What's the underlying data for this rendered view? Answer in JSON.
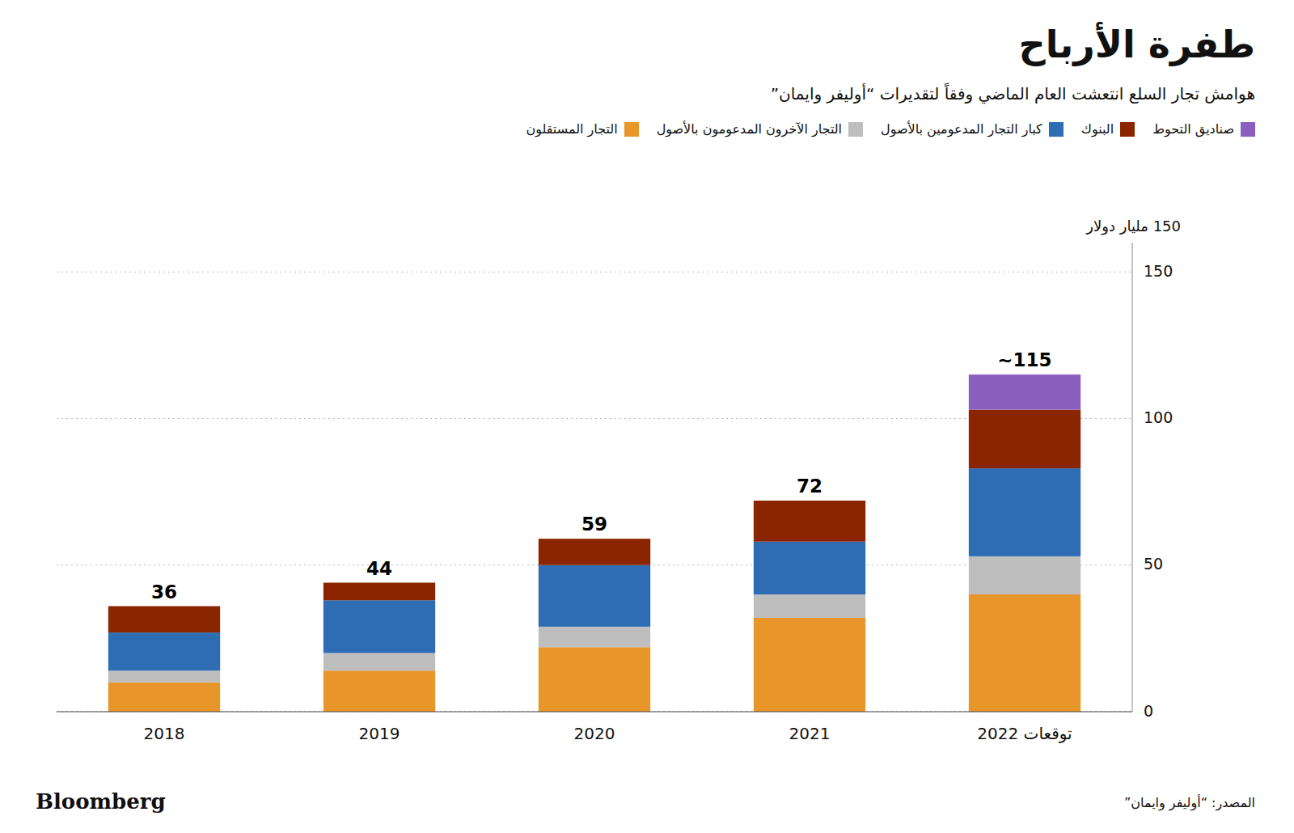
{
  "chart_data": {
    "type": "bar",
    "stacked": true,
    "title": "طفرة الأرباح",
    "subtitle": "هوامش تجار السلع انتعشت العام الماضي وفقاً لتقديرات “أوليفر وايمان”",
    "ylabel": "150 مليار دولار",
    "source": "المصدر: “أوليفر وايمان”",
    "credit": "Bloomberg",
    "categories": [
      "2018",
      "2019",
      "2020",
      "2021",
      "توقعات 2022"
    ],
    "series": [
      {
        "name": "التجار المستقلون",
        "color": "#E8952A",
        "values": [
          10,
          14,
          22,
          32,
          40
        ]
      },
      {
        "name": "التجار الآخرون المدعومون بالأصول",
        "color": "#BEBEBE",
        "values": [
          4,
          6,
          7,
          8,
          13
        ]
      },
      {
        "name": "كبار التجار المدعومين بالأصول",
        "color": "#2E6DB4",
        "values": [
          13,
          18,
          21,
          18,
          30
        ]
      },
      {
        "name": "البنوك",
        "color": "#8B2500",
        "values": [
          9,
          6,
          9,
          14,
          20
        ]
      },
      {
        "name": "صناديق التحوط",
        "color": "#8B5FBF",
        "values": [
          0,
          0,
          0,
          0,
          12
        ]
      }
    ],
    "totals": [
      36,
      44,
      59,
      72,
      115
    ],
    "total_labels": [
      "36",
      "44",
      "59",
      "72",
      "~115"
    ],
    "ylim": [
      0,
      160
    ],
    "yticks": [
      0,
      50,
      100,
      150
    ],
    "grid": true,
    "legend": "upper right"
  }
}
